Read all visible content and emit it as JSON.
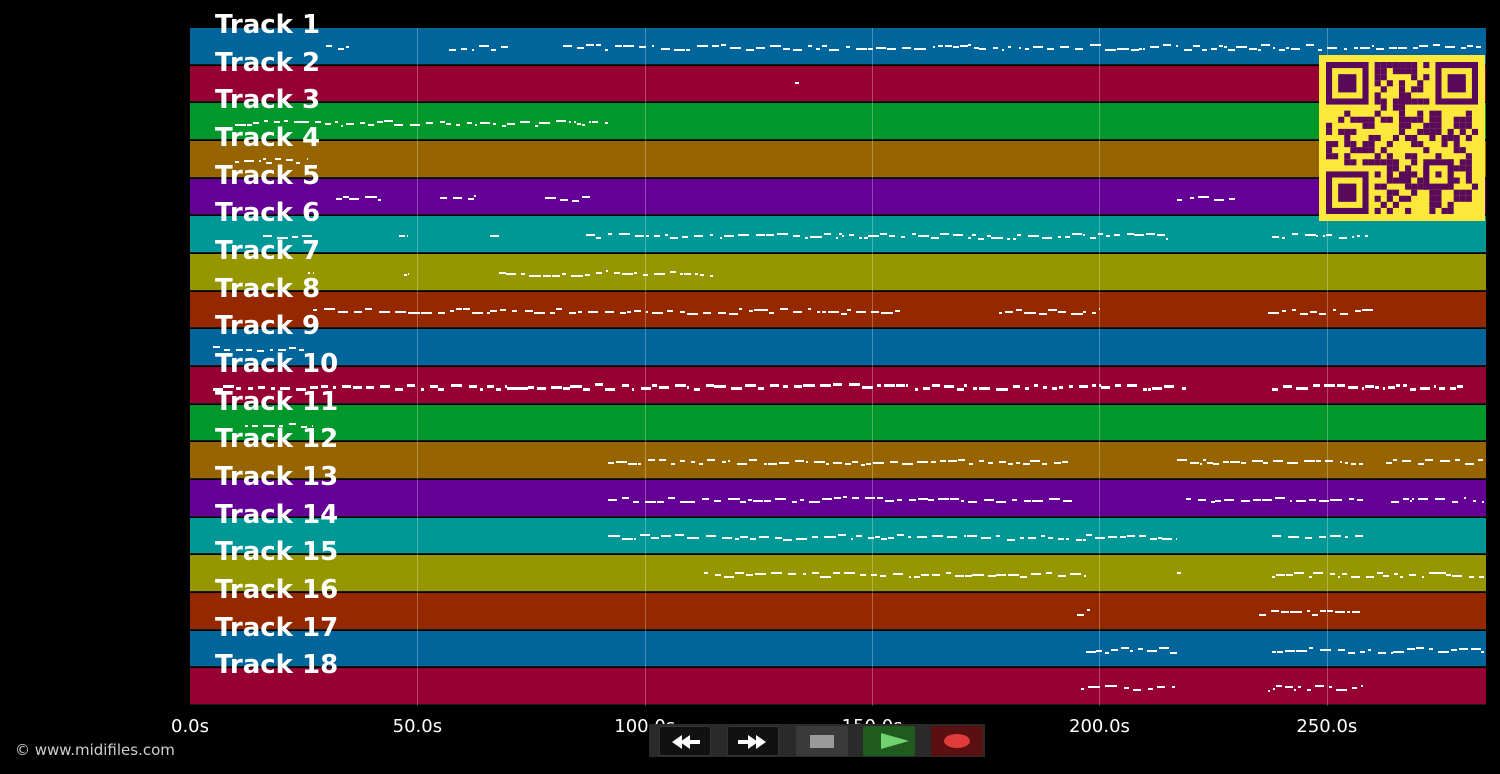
{
  "tracks": [
    {
      "label": "Track 1",
      "color": "#00659a"
    },
    {
      "label": "Track 2",
      "color": "#960032"
    },
    {
      "label": "Track 3",
      "color": "#00982a"
    },
    {
      "label": "Track 4",
      "color": "#966400"
    },
    {
      "label": "Track 5",
      "color": "#650096"
    },
    {
      "label": "Track 6",
      "color": "#009797"
    },
    {
      "label": "Track 7",
      "color": "#969600"
    },
    {
      "label": "Track 8",
      "color": "#962800"
    },
    {
      "label": "Track 9",
      "color": "#00659a"
    },
    {
      "label": "Track 10",
      "color": "#960032"
    },
    {
      "label": "Track 11",
      "color": "#00982a"
    },
    {
      "label": "Track 12",
      "color": "#966400"
    },
    {
      "label": "Track 13",
      "color": "#650096"
    },
    {
      "label": "Track 14",
      "color": "#009797"
    },
    {
      "label": "Track 15",
      "color": "#969600"
    },
    {
      "label": "Track 16",
      "color": "#962800"
    },
    {
      "label": "Track 17",
      "color": "#00659a"
    },
    {
      "label": "Track 18",
      "color": "#960032"
    }
  ],
  "timeline": {
    "x_min": 0,
    "x_max": 285,
    "ticks": [
      "0.0s",
      "50.0s",
      "100.0s",
      "150.0s",
      "200.0s",
      "250.0s"
    ]
  },
  "copyright": "© www.midifiles.com",
  "qr": {
    "fg": "#5a0a5a",
    "bg": "#fbe83a"
  },
  "controls": {
    "rewind_icon": "rewind-icon",
    "fast_forward_icon": "fast-forward-icon",
    "stop_icon": "stop-icon",
    "play_icon": "play-icon",
    "record_icon": "record-icon"
  }
}
